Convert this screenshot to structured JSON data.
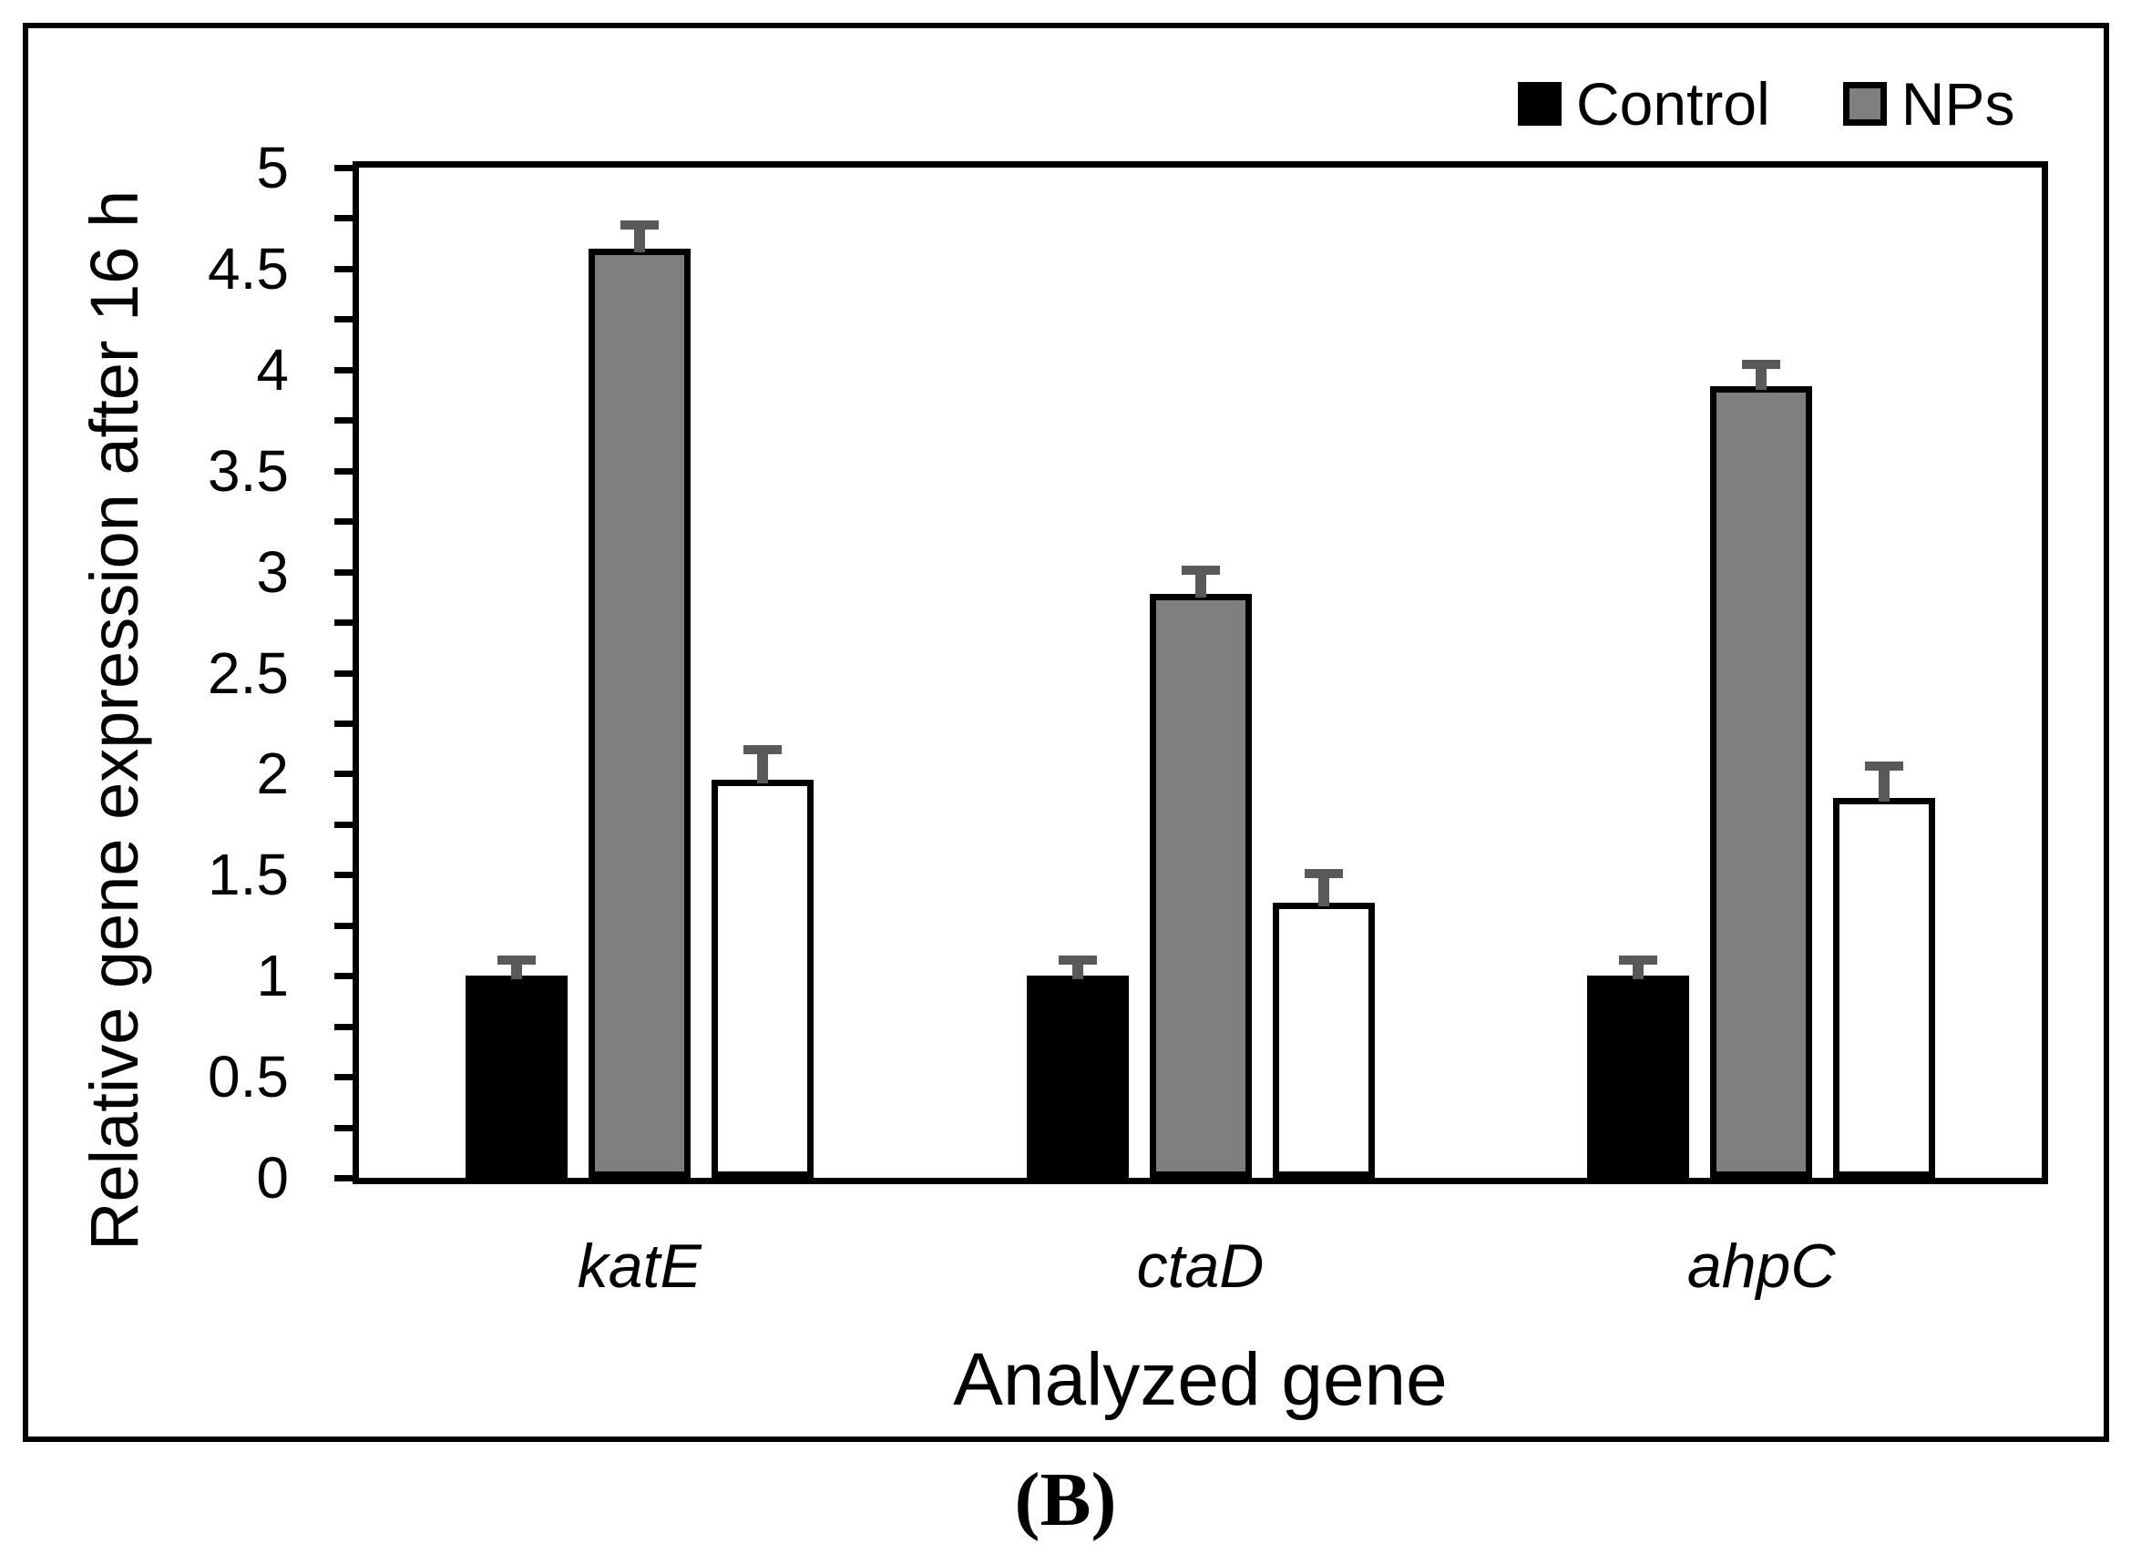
{
  "figure": {
    "panel_label": "(B)",
    "legend": [
      {
        "label": "Control",
        "fill": "#000000"
      },
      {
        "label": "NPs",
        "fill": "#7F7F7F"
      }
    ]
  },
  "chart_data": {
    "type": "bar",
    "title": "",
    "xlabel": "Analyzed gene",
    "ylabel": "Relative gene expression after 16 h",
    "categories": [
      "katE",
      "ctaD",
      "ahpC"
    ],
    "categories_style": "italic",
    "series": [
      {
        "name": "Control",
        "fill": "#000000",
        "values": [
          1.0,
          1.0,
          1.0
        ],
        "errors_plus": [
          0.1,
          0.1,
          0.1
        ]
      },
      {
        "name": "NPs",
        "fill": "#7F7F7F",
        "values": [
          4.6,
          2.89,
          3.92
        ],
        "errors_plus": [
          0.14,
          0.14,
          0.13
        ]
      },
      {
        "name": "",
        "fill": "#FFFFFF",
        "values": [
          1.97,
          1.36,
          1.88
        ],
        "errors_plus": [
          0.17,
          0.17,
          0.18
        ]
      }
    ],
    "ylim": [
      0,
      5
    ],
    "y_major_tick_step": 0.5,
    "y_minor_tick_step": 0.25,
    "y_tick_labels": [
      "0",
      "0.5",
      "1",
      "1.5",
      "2",
      "2.5",
      "3",
      "3.5",
      "4",
      "4.5",
      "5"
    ],
    "grid": "off",
    "legend_position": "top-right-inside",
    "error_bar_color": "#595959",
    "bar_outline_color": "#000000"
  }
}
